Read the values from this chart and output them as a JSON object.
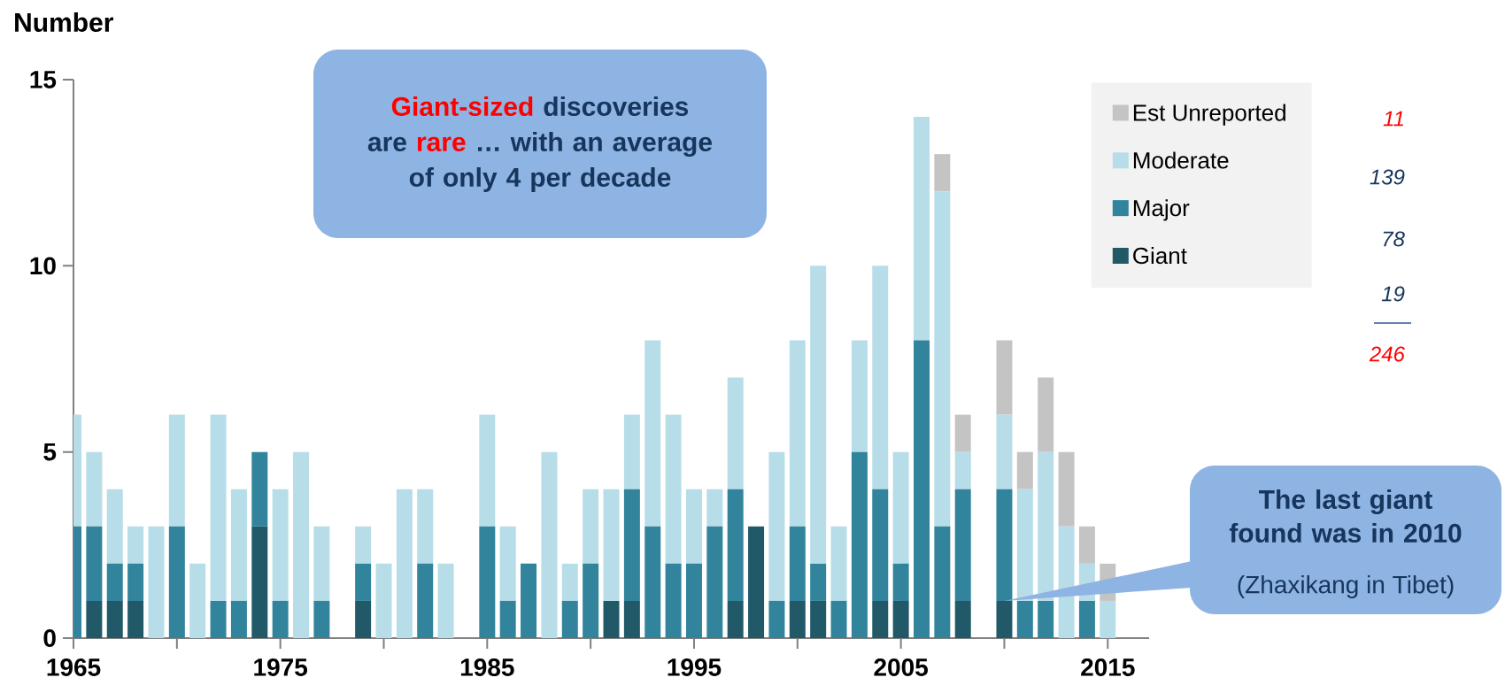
{
  "chart_data": {
    "type": "bar",
    "stacked": true,
    "ylabel": "Number",
    "x": [
      1965,
      1966,
      1967,
      1968,
      1969,
      1970,
      1971,
      1972,
      1973,
      1974,
      1975,
      1976,
      1977,
      1978,
      1979,
      1980,
      1981,
      1982,
      1983,
      1984,
      1985,
      1986,
      1987,
      1988,
      1989,
      1990,
      1991,
      1992,
      1993,
      1994,
      1995,
      1996,
      1997,
      1998,
      1999,
      2000,
      2001,
      2002,
      2003,
      2004,
      2005,
      2006,
      2007,
      2008,
      2009,
      2010,
      2011,
      2012,
      2013,
      2014,
      2015
    ],
    "series": [
      {
        "name": "Giant",
        "color": "#215968",
        "values": [
          0,
          1,
          1,
          1,
          0,
          0,
          0,
          0,
          0,
          3,
          0,
          0,
          0,
          0,
          1,
          0,
          0,
          0,
          0,
          0,
          0,
          0,
          0,
          0,
          0,
          0,
          1,
          1,
          0,
          0,
          0,
          0,
          1,
          3,
          0,
          1,
          1,
          0,
          0,
          1,
          1,
          0,
          0,
          1,
          0,
          1,
          0,
          0,
          0,
          0,
          0
        ]
      },
      {
        "name": "Major",
        "color": "#31849b",
        "values": [
          3,
          2,
          1,
          1,
          0,
          3,
          0,
          1,
          1,
          2,
          1,
          0,
          1,
          0,
          1,
          0,
          0,
          2,
          0,
          0,
          3,
          1,
          2,
          0,
          1,
          2,
          0,
          3,
          3,
          2,
          2,
          3,
          3,
          0,
          1,
          2,
          1,
          1,
          5,
          3,
          1,
          8,
          3,
          3,
          0,
          3,
          1,
          1,
          0,
          1,
          0
        ]
      },
      {
        "name": "Moderate",
        "color": "#b7dde8",
        "values": [
          3,
          2,
          2,
          1,
          3,
          3,
          2,
          5,
          3,
          0,
          3,
          5,
          2,
          0,
          1,
          2,
          4,
          2,
          2,
          0,
          3,
          2,
          0,
          5,
          1,
          2,
          3,
          2,
          5,
          4,
          2,
          1,
          3,
          0,
          4,
          5,
          8,
          2,
          3,
          6,
          3,
          6,
          9,
          1,
          0,
          2,
          3,
          4,
          3,
          1,
          1
        ]
      },
      {
        "name": "Est Unreported",
        "color": "#c4c4c4",
        "values": [
          0,
          0,
          0,
          0,
          0,
          0,
          0,
          0,
          0,
          0,
          0,
          0,
          0,
          0,
          0,
          0,
          0,
          0,
          0,
          0,
          0,
          0,
          0,
          0,
          0,
          0,
          0,
          0,
          0,
          0,
          0,
          0,
          0,
          0,
          0,
          0,
          0,
          0,
          0,
          0,
          0,
          0,
          1,
          1,
          0,
          2,
          1,
          2,
          2,
          1,
          1
        ]
      }
    ],
    "xlim": [
      1965,
      2017
    ],
    "xticks": [
      1965,
      {
        "value": 1970,
        "label": null
      },
      1975,
      {
        "value": 1980,
        "label": null
      },
      1985,
      {
        "value": 1990,
        "label": null
      },
      1995,
      {
        "value": 2000,
        "label": null
      },
      2005,
      {
        "value": 2010,
        "label": null
      },
      2015
    ],
    "ylim": [
      0,
      15
    ],
    "yticks": [
      0,
      5,
      10,
      15
    ],
    "legend": "top right",
    "annotations": [
      "Giant-sized",
      "discoveries are",
      "rare",
      "… with an average of only 4 per decade",
      {
        "text": "The last giant found was in 2010",
        "x": 2010,
        "y": 1
      },
      "(Zhaxikang in Tibet)",
      "11",
      "139",
      "78",
      "19",
      "246"
    ]
  }
}
